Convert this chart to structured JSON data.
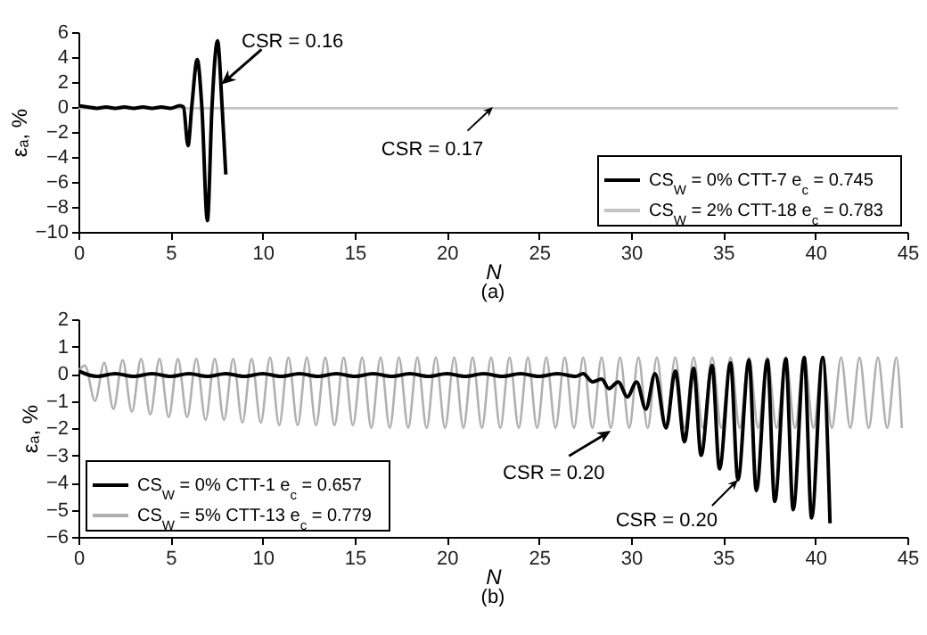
{
  "chart_data": [
    {
      "type": "line",
      "title": "(a)",
      "xlabel": "N",
      "ylabel": "εₐ, %",
      "xlim": [
        0,
        45
      ],
      "xticks": [
        0,
        5,
        10,
        15,
        20,
        25,
        30,
        35,
        40,
        45
      ],
      "ylim": [
        -10,
        6
      ],
      "yticks": [
        -10,
        -8,
        -6,
        -4,
        -2,
        0,
        2,
        4,
        6
      ],
      "legend": "bottom right",
      "annotations": [
        {
          "text": "CSR = 0.16",
          "x": 7.75,
          "y": 1.8
        },
        {
          "text": "CSR = 0.17",
          "x": 22.5,
          "y": 0
        }
      ],
      "series": [
        {
          "name": "CS$_{W}$ = 0% CTT-7  e$_{c}$ = 0.745",
          "color": "#000000",
          "x": [
            0,
            0.5,
            1,
            1.5,
            2,
            2.5,
            3,
            3.5,
            4,
            4.5,
            5,
            5.5,
            5.7,
            5.95,
            6.15,
            6.45,
            6.7,
            7.0,
            7.25,
            7.55,
            7.8,
            8.0
          ],
          "values": [
            0.1,
            0,
            -0.1,
            0,
            -0.1,
            0,
            -0.1,
            0,
            -0.1,
            0,
            -0.1,
            0.1,
            0,
            -3.1,
            0,
            3.8,
            0,
            -9.1,
            0,
            5.3,
            0,
            -5.4
          ]
        },
        {
          "name": "CS$_{W}$ = 2% CTT-18  e$_{c}$ = 0.783",
          "color": "#c4c4c4",
          "x": [
            0,
            44.5
          ],
          "values": [
            -0.1,
            -0.1
          ]
        }
      ]
    },
    {
      "type": "line",
      "title": "(b)",
      "xlabel": "N",
      "ylabel": "εₐ, %",
      "xlim": [
        0,
        45
      ],
      "xticks": [
        0,
        5,
        10,
        15,
        20,
        25,
        30,
        35,
        40,
        45
      ],
      "ylim": [
        -6,
        2
      ],
      "yticks": [
        -6,
        -5,
        -4,
        -3,
        -2,
        -1,
        0,
        1,
        2
      ],
      "legend": "bottom left",
      "annotations": [
        {
          "text": "CSR = 0.20",
          "x": 28.9,
          "y": -2.1
        },
        {
          "text": "CSR = 0.20",
          "x": 35.8,
          "y": -3.9
        }
      ],
      "series": [
        {
          "name": "CS$_{W}$ = 0% CTT-1  e$_{c}$ = 0.657",
          "color": "#000000",
          "x": [
            0,
            1,
            2,
            3,
            4,
            5,
            6,
            7,
            8,
            9,
            10,
            11,
            12,
            13,
            14,
            15,
            16,
            17,
            18,
            19,
            20,
            21,
            22,
            23,
            24,
            25,
            26,
            27,
            27.4,
            27.9,
            28.4,
            28.8,
            29.3,
            29.8,
            30.3,
            30.8,
            31.3,
            31.9,
            32.4,
            32.9,
            33.4,
            33.8,
            34.4,
            34.8,
            35.4,
            35.8,
            36.4,
            36.8,
            37.4,
            37.8,
            38.4,
            38.8,
            39.4,
            39.8,
            40.4,
            40.8
          ],
          "values": [
            0.1,
            -0.1,
            0,
            -0.1,
            0,
            -0.1,
            0,
            -0.1,
            0,
            -0.1,
            0,
            -0.1,
            0,
            -0.1,
            0,
            -0.1,
            0,
            -0.1,
            0,
            -0.1,
            0,
            -0.1,
            0,
            -0.1,
            0,
            -0.1,
            0,
            -0.1,
            0,
            -0.3,
            -0.2,
            -0.55,
            -0.3,
            -0.85,
            -0.3,
            -1.3,
            0,
            -2.0,
            0.1,
            -2.5,
            0.2,
            -3.0,
            0.3,
            -3.5,
            0.4,
            -3.9,
            0.5,
            -4.3,
            0.5,
            -4.7,
            0.55,
            -5.0,
            0.6,
            -5.3,
            0.6,
            -5.5
          ]
        },
        {
          "name": "CS$_{W}$ = 5% CTT-13  e$_{c}$ = 0.779",
          "color": "#b0b0b0",
          "x": [
            0,
            0.35,
            0.9,
            1.4,
            1.9,
            2.4,
            2.9,
            3.4,
            3.9,
            4.4,
            4.9,
            5.4,
            5.9,
            6.4,
            6.9,
            7.4,
            7.9,
            8.4,
            8.9,
            9.4,
            9.9,
            10.4,
            10.9,
            11.4,
            11.9,
            12.4,
            12.9,
            13.4,
            13.9,
            14.4,
            14.9,
            15.4,
            15.9,
            16.4,
            16.9,
            17.4,
            17.9,
            18.4,
            18.9,
            19.4,
            19.9,
            20.4,
            20.9,
            21.4,
            21.9,
            22.4,
            22.9,
            23.4,
            23.9,
            24.4,
            24.9,
            25.4,
            25.9,
            26.4,
            26.9,
            27.4,
            27.9,
            28.4,
            28.9,
            29.4,
            29.9,
            30.4,
            30.9,
            31.4,
            31.9,
            32.4,
            32.9,
            33.4,
            33.9,
            34.4,
            34.9,
            35.4,
            35.9,
            36.4,
            36.9,
            37.4,
            37.9,
            38.4,
            38.9,
            39.4,
            39.9,
            40.4,
            40.9,
            41.4,
            41.9,
            42.4,
            42.9,
            43.4,
            43.9,
            44.4,
            44.7
          ],
          "values": [
            0.1,
            0.3,
            -1.0,
            0.4,
            -1.3,
            0.5,
            -1.4,
            0.55,
            -1.5,
            0.55,
            -1.6,
            0.55,
            -1.6,
            0.55,
            -1.7,
            0.55,
            -1.7,
            0.55,
            -1.8,
            0.55,
            -1.8,
            0.6,
            -1.9,
            0.6,
            -1.9,
            0.6,
            -1.9,
            0.6,
            -1.9,
            0.6,
            -1.9,
            0.6,
            -2.0,
            0.6,
            -2.0,
            0.6,
            -2.0,
            0.6,
            -2.0,
            0.6,
            -2.0,
            0.6,
            -2.0,
            0.6,
            -2.0,
            0.6,
            -2.0,
            0.6,
            -2.0,
            0.6,
            -2.0,
            0.6,
            -2.0,
            0.6,
            -2.0,
            0.6,
            -2.0,
            0.6,
            -2.0,
            0.6,
            -2.0,
            0.6,
            -2.0,
            0.6,
            -2.0,
            0.6,
            -2.0,
            0.6,
            -2.0,
            0.6,
            -2.0,
            0.6,
            -2.0,
            0.6,
            -2.0,
            0.6,
            -2.0,
            0.6,
            -2.0,
            0.6,
            -2.0,
            0.6,
            -2.0,
            0.6,
            -2.0,
            0.6,
            -2.0,
            0.6,
            -2.0,
            0.6,
            -2.0
          ]
        }
      ]
    }
  ]
}
